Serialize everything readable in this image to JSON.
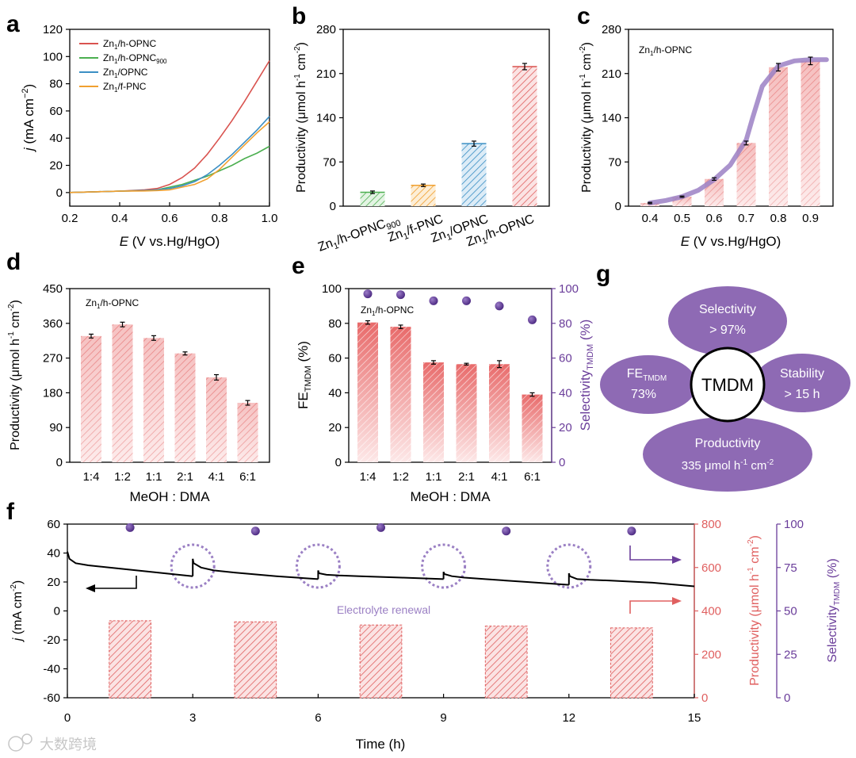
{
  "colors": {
    "red": "#d9534f",
    "green": "#4caf50",
    "blue": "#3b8fc4",
    "orange": "#f0a030",
    "purple": "#6a3d9a",
    "purple_light": "#9b80c4",
    "petal": "#8e6ab4",
    "salmon": "#e06060"
  },
  "watermark": "大数跨境",
  "panels": {
    "a": {
      "letter": "a"
    },
    "b": {
      "letter": "b"
    },
    "c": {
      "letter": "c"
    },
    "d": {
      "letter": "d"
    },
    "e": {
      "letter": "e"
    },
    "f": {
      "letter": "f"
    },
    "g": {
      "letter": "g"
    }
  },
  "chart_data": [
    {
      "id": "a",
      "type": "line",
      "xlabel_italic": "E",
      "xlabel_rest": " (V vs.Hg/HgO)",
      "ylabel_italic": "j",
      "ylabel_rest": " (mA cm",
      "ylabel_sup": "−2",
      "ylabel_end": ")",
      "xlim": [
        0.2,
        1.0
      ],
      "ylim": [
        -10,
        120
      ],
      "xticks": [
        "0.2",
        "0.4",
        "0.6",
        "0.8",
        "1.0"
      ],
      "yticks": [
        "0",
        "20",
        "40",
        "60",
        "80",
        "100",
        "120"
      ],
      "series": [
        {
          "name": "Zn1/h-OPNC",
          "base": "Zn",
          "sub": "1",
          "rest": "/h-OPNC",
          "sub2": "",
          "color": "#d9534f",
          "x": [
            0.2,
            0.4,
            0.5,
            0.55,
            0.6,
            0.65,
            0.7,
            0.75,
            0.8,
            0.85,
            0.9,
            0.95,
            1.0
          ],
          "y": [
            0,
            1,
            2,
            3,
            6,
            11,
            18,
            28,
            40,
            53,
            67,
            82,
            97
          ]
        },
        {
          "name": "Zn1/h-OPNC900",
          "base": "Zn",
          "sub": "1",
          "rest": "/h-OPNC",
          "sub2": "900",
          "color": "#4caf50",
          "x": [
            0.2,
            0.4,
            0.5,
            0.55,
            0.6,
            0.65,
            0.7,
            0.75,
            0.8,
            0.85,
            0.9,
            0.95,
            1.0
          ],
          "y": [
            0,
            1,
            1.5,
            2,
            4,
            6,
            9,
            12,
            16,
            20,
            25,
            29,
            34
          ]
        },
        {
          "name": "Zn1/OPNC",
          "base": "Zn",
          "sub": "1",
          "rest": "/OPNC",
          "sub2": "",
          "color": "#3b8fc4",
          "x": [
            0.2,
            0.4,
            0.5,
            0.55,
            0.6,
            0.65,
            0.7,
            0.75,
            0.8,
            0.85,
            0.9,
            0.95,
            1.0
          ],
          "y": [
            0,
            1,
            1.5,
            2,
            3,
            5,
            8,
            13,
            20,
            28,
            37,
            46,
            56
          ]
        },
        {
          "name": "Zn1/f-PNC",
          "base": "Zn",
          "sub": "1",
          "rest": "/f-PNC",
          "sub2": "",
          "color": "#f0a030",
          "x": [
            0.2,
            0.4,
            0.5,
            0.55,
            0.6,
            0.65,
            0.7,
            0.75,
            0.8,
            0.85,
            0.9,
            0.95,
            1.0
          ],
          "y": [
            0,
            1,
            1.2,
            1.5,
            2,
            4,
            6,
            10,
            17,
            26,
            35,
            44,
            52
          ]
        }
      ]
    },
    {
      "id": "b",
      "type": "bar",
      "ylabel": "Productivity (μmol h",
      "ylabel_sup1": "-1",
      "ylabel_mid": " cm",
      "ylabel_sup2": "-2",
      "ylabel_end": ")",
      "ylim": [
        0,
        280
      ],
      "yticks": [
        "0",
        "70",
        "140",
        "210",
        "280"
      ],
      "categories": [
        {
          "base": "Zn",
          "sub": "1",
          "rest": "/h-OPNC",
          "sub2": "900"
        },
        {
          "base": "Zn",
          "sub": "1",
          "rest": "/f-PNC",
          "sub2": ""
        },
        {
          "base": "Zn",
          "sub": "1",
          "rest": "/OPNC",
          "sub2": ""
        },
        {
          "base": "Zn",
          "sub": "1",
          "rest": "/h-OPNC",
          "sub2": ""
        }
      ],
      "values": [
        22,
        33,
        99,
        221
      ],
      "errors": [
        2,
        2,
        4,
        5
      ],
      "colors": [
        "#4caf50",
        "#f0a030",
        "#3b8fc4",
        "#d9534f"
      ]
    },
    {
      "id": "c",
      "type": "bar",
      "annotation_base": "Zn",
      "annotation_sub": "1",
      "annotation_rest": "/h-OPNC",
      "xlabel_italic": "E",
      "xlabel_rest": " (V vs.Hg/HgO)",
      "ylabel": "Productivity (μmol h",
      "ylabel_sup1": "-1",
      "ylabel_mid": " cm",
      "ylabel_sup2": "-2",
      "ylabel_end": ")",
      "ylim": [
        0,
        280
      ],
      "yticks": [
        "0",
        "70",
        "140",
        "210",
        "280"
      ],
      "categories": [
        "0.4",
        "0.5",
        "0.6",
        "0.7",
        "0.8",
        "0.9"
      ],
      "values": [
        5,
        15,
        43,
        100,
        220,
        230
      ],
      "errors": [
        1,
        1,
        2,
        3,
        6,
        6
      ],
      "fit_x": [
        0.4,
        0.45,
        0.5,
        0.55,
        0.6,
        0.65,
        0.7,
        0.72,
        0.75,
        0.8,
        0.85,
        0.9,
        0.95
      ],
      "fit_y": [
        5,
        9,
        15,
        25,
        42,
        65,
        105,
        140,
        190,
        222,
        230,
        232,
        232
      ]
    },
    {
      "id": "d",
      "type": "bar",
      "annotation_base": "Zn",
      "annotation_sub": "1",
      "annotation_rest": "/h-OPNC",
      "xlabel": "MeOH : DMA",
      "ylabel": "Productivity (μmol h",
      "ylabel_sup1": "-1",
      "ylabel_mid": " cm",
      "ylabel_sup2": "-2",
      "ylabel_end": ")",
      "ylim": [
        0,
        450
      ],
      "yticks": [
        "0",
        "90",
        "180",
        "270",
        "360",
        "450"
      ],
      "categories": [
        "1:4",
        "1:2",
        "1:1",
        "2:1",
        "4:1",
        "6:1"
      ],
      "values": [
        327,
        357,
        322,
        282,
        220,
        154
      ],
      "errors": [
        5,
        6,
        6,
        4,
        7,
        6
      ]
    },
    {
      "id": "e",
      "type": "bar",
      "annotation_base": "Zn",
      "annotation_sub": "1",
      "annotation_rest": "/h-OPNC",
      "xlabel": "MeOH : DMA",
      "ylabel_base": "FE",
      "ylabel_sub": "TMDM",
      "ylabel_end": " (%)",
      "y2label_base": "Selectivity",
      "y2label_sub": "TMDM",
      "y2label_end": " (%)",
      "ylim": [
        0,
        100
      ],
      "yticks": [
        "0",
        "20",
        "40",
        "60",
        "80",
        "100"
      ],
      "y2ticks": [
        "0",
        "20",
        "40",
        "60",
        "80",
        "100"
      ],
      "categories": [
        "1:4",
        "1:2",
        "1:1",
        "2:1",
        "4:1",
        "6:1"
      ],
      "values": [
        80.5,
        78,
        57.5,
        56.5,
        56.5,
        39
      ],
      "errors": [
        1,
        1,
        1,
        0.5,
        2,
        1
      ],
      "selectivity": [
        97,
        96.5,
        93,
        93,
        90,
        82
      ]
    },
    {
      "id": "f",
      "type": "line",
      "xlabel": "Time (h)",
      "ylabel_italic": "j",
      "ylabel_rest": " (mA cm",
      "ylabel_sup": "-2",
      "ylabel_end": ")",
      "y2label": "Productivity (μmol h",
      "y2label_sup1": "-1",
      "y2label_mid": " cm",
      "y2label_sup2": "-2",
      "y2label_end": ")",
      "y3label_base": "Selectivity",
      "y3label_sub": "TMDM",
      "y3label_end": " (%)",
      "xlim": [
        0,
        15
      ],
      "ylim": [
        -60,
        60
      ],
      "y2lim": [
        0,
        800
      ],
      "y3lim": [
        0,
        100
      ],
      "xticks": [
        "0",
        "3",
        "6",
        "9",
        "12",
        "15"
      ],
      "yticks": [
        "-60",
        "-40",
        "-20",
        "0",
        "20",
        "40",
        "60"
      ],
      "y2ticks": [
        "0",
        "200",
        "400",
        "600",
        "800"
      ],
      "y3ticks": [
        "0",
        "25",
        "50",
        "75",
        "100"
      ],
      "annotation": "Electrolyte renewal",
      "renewal_times": [
        3,
        6,
        9,
        12
      ],
      "current_segments": [
        {
          "x": [
            0,
            0.05,
            0.2,
            0.5,
            1,
            2,
            3
          ],
          "y": [
            41,
            36,
            33,
            31.5,
            30,
            27,
            24
          ]
        },
        {
          "x": [
            3,
            3.02,
            3.2,
            3.5,
            4,
            5,
            6
          ],
          "y": [
            36,
            33,
            30,
            28,
            26.5,
            24,
            22
          ]
        },
        {
          "x": [
            6,
            6.02,
            6.2,
            6.5,
            7,
            8,
            9
          ],
          "y": [
            28,
            26,
            25,
            24.5,
            24,
            23,
            22
          ]
        },
        {
          "x": [
            9,
            9.02,
            9.2,
            9.5,
            10,
            11,
            12
          ],
          "y": [
            27,
            25.5,
            24,
            23,
            22,
            20,
            18
          ]
        },
        {
          "x": [
            12,
            12.02,
            12.2,
            12.5,
            13,
            14,
            15
          ],
          "y": [
            26,
            24,
            22,
            21.5,
            21,
            19.5,
            17
          ]
        }
      ],
      "productivity_bars": [
        {
          "x0": 1,
          "x1": 2,
          "value": 355
        },
        {
          "x0": 4,
          "x1": 5,
          "value": 350
        },
        {
          "x0": 7,
          "x1": 8,
          "value": 335
        },
        {
          "x0": 10,
          "x1": 11,
          "value": 330
        },
        {
          "x0": 13,
          "x1": 14,
          "value": 322
        }
      ],
      "selectivity_points": {
        "x": [
          1.5,
          4.5,
          7.5,
          10.5,
          13.5
        ],
        "y": [
          98,
          96,
          98,
          96,
          96
        ]
      }
    }
  ],
  "diagram_g": {
    "center": "TMDM",
    "top_line1": "Selectivity",
    "top_line2": "> 97%",
    "left_base": "FE",
    "left_sub": "TMDM",
    "left_line2": "73%",
    "right_line1": "Stability",
    "right_line2": "> 15 h",
    "bottom_line1": "Productivity",
    "bottom_line2_a": "335 μmol h",
    "bottom_sup1": "-1",
    "bottom_mid": " cm",
    "bottom_sup2": "-2"
  }
}
